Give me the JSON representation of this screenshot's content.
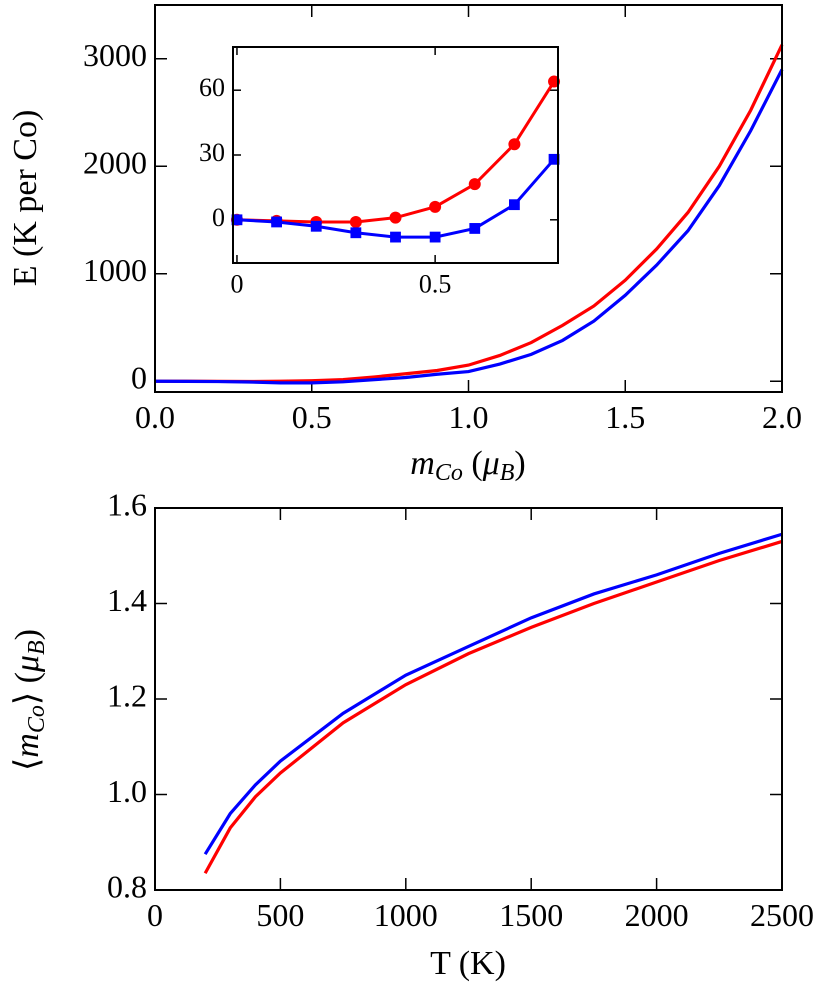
{
  "chart_data": [
    {
      "type": "line",
      "y_label": "E (K per Co)",
      "x_label": [
        "m",
        "Co",
        " (",
        "μ",
        "B",
        ")"
      ],
      "x": [
        0,
        0.1,
        0.2,
        0.3,
        0.4,
        0.5,
        0.6,
        0.7,
        0.8,
        0.9,
        1.0,
        1.1,
        1.2,
        1.3,
        1.4,
        1.5,
        1.6,
        1.7,
        1.8,
        1.9,
        2.0
      ],
      "series": [
        {
          "color": "#ff0000",
          "values": [
            0,
            0,
            -1,
            -2,
            0,
            5,
            15,
            40,
            70,
            100,
            150,
            240,
            360,
            520,
            700,
            940,
            1230,
            1570,
            2000,
            2520,
            3130
          ]
        },
        {
          "color": "#0000ff",
          "values": [
            0,
            -1,
            -3,
            -7,
            -15,
            -15,
            -5,
            15,
            35,
            65,
            90,
            160,
            250,
            380,
            560,
            800,
            1080,
            1400,
            1820,
            2330,
            2900
          ]
        }
      ],
      "xlim": [
        0,
        2
      ],
      "ylim": [
        -100,
        3500
      ],
      "xticks": [
        {
          "value": 0,
          "label": "0.0"
        },
        0.5,
        {
          "value": 1,
          "label": "1.0"
        },
        1.5,
        {
          "value": 2,
          "label": "2.0"
        }
      ],
      "yticks": [
        0,
        1000,
        2000,
        3000
      ]
    },
    {
      "type": "line",
      "x": [
        0,
        0.1,
        0.2,
        0.3,
        0.4,
        0.5,
        0.6,
        0.7,
        0.8
      ],
      "series": [
        {
          "color": "#ff0000",
          "marker": "circle",
          "values": [
            0,
            -0.5,
            -1,
            -1,
            1,
            6,
            16.5,
            35,
            64
          ]
        },
        {
          "color": "#0000ff",
          "marker": "square",
          "values": [
            0,
            -1,
            -3,
            -6,
            -8,
            -8,
            -4,
            7,
            28
          ]
        }
      ],
      "xlim": [
        -0.01,
        0.81
      ],
      "ylim": [
        -20,
        80
      ],
      "xticks": [
        0,
        0.5
      ],
      "yticks": [
        0,
        30,
        60
      ]
    },
    {
      "type": "line",
      "x_label": "T (K)",
      "y_label": [
        "⟨",
        "m",
        "Co",
        "⟩ (",
        "μ",
        "B",
        ")"
      ],
      "x": [
        200,
        300,
        400,
        500,
        750,
        1000,
        1250,
        1500,
        1750,
        2000,
        2250,
        2500
      ],
      "series": [
        {
          "color": "#0000ff",
          "values": [
            0.875,
            0.96,
            1.02,
            1.07,
            1.17,
            1.25,
            1.31,
            1.37,
            1.42,
            1.46,
            1.505,
            1.545
          ]
        },
        {
          "color": "#ff0000",
          "values": [
            0.835,
            0.93,
            0.995,
            1.045,
            1.15,
            1.23,
            1.295,
            1.35,
            1.4,
            1.445,
            1.49,
            1.53
          ]
        }
      ],
      "xlim": [
        0,
        2500
      ],
      "ylim": [
        0.8,
        1.6
      ],
      "xticks": [
        0,
        500,
        1000,
        1500,
        2000,
        2500
      ],
      "yticks": [
        {
          "value": 0.8,
          "label": "0.8"
        },
        {
          "value": 1,
          "label": "1.0"
        },
        1.2,
        1.4,
        1.6
      ]
    }
  ]
}
